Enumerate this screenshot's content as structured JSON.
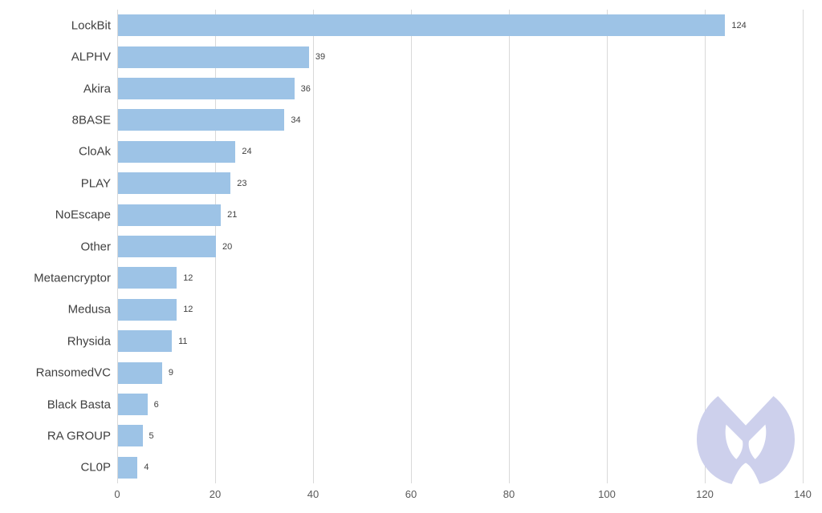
{
  "chart_data": {
    "type": "bar",
    "orientation": "horizontal",
    "title": "",
    "xlabel": "",
    "ylabel": "",
    "categories": [
      "LockBit",
      "ALPHV",
      "Akira",
      "8BASE",
      "CloAk",
      "PLAY",
      "NoEscape",
      "Other",
      "Metaencryptor",
      "Medusa",
      "Rhysida",
      "RansomedVC",
      "Black Basta",
      "RA GROUP",
      "CL0P"
    ],
    "values": [
      124,
      39,
      36,
      34,
      24,
      23,
      21,
      20,
      12,
      12,
      11,
      9,
      6,
      5,
      4
    ],
    "x_ticks": [
      "0",
      "20",
      "40",
      "60",
      "80",
      "100",
      "120",
      "140"
    ],
    "x_tick_values": [
      0,
      20,
      40,
      60,
      80,
      100,
      120,
      140
    ],
    "xlim": [
      0,
      140
    ],
    "grid": "vertical",
    "legend": "none",
    "value_labels_shown": true
  },
  "colors": {
    "bar": "#9dc3e6",
    "gridline": "#d9d9d9",
    "category_text": "#404040",
    "value_text": "#404040",
    "tick_text": "#595959",
    "watermark": "#cdd0ec",
    "background": "#ffffff"
  },
  "watermark": {
    "icon": "malwarebytes-logo"
  }
}
